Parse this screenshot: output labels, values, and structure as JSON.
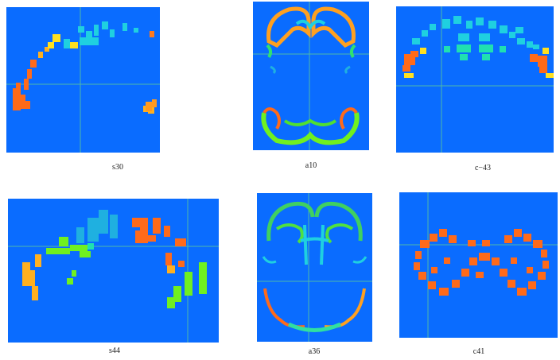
{
  "figure": {
    "background_color": "#0a6cff",
    "crosshair_color": "#4db8a8",
    "panels": [
      {
        "id": "s30",
        "label": "s30"
      },
      {
        "id": "a10",
        "label": "a10"
      },
      {
        "id": "c-43",
        "label": "c−43"
      },
      {
        "id": "s44",
        "label": "s44"
      },
      {
        "id": "a36",
        "label": "a36"
      },
      {
        "id": "c41",
        "label": "c41"
      }
    ]
  }
}
